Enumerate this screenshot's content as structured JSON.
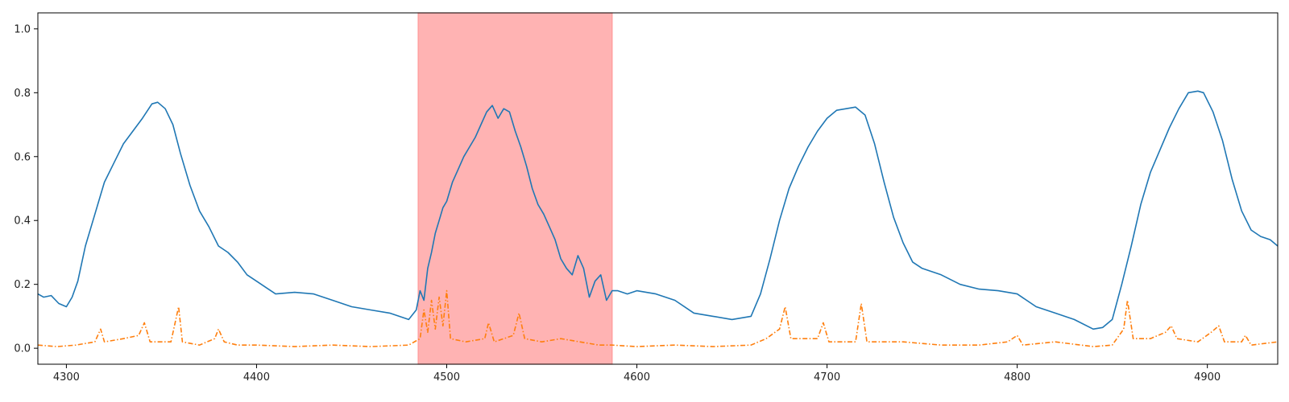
{
  "chart_data": {
    "type": "line",
    "title": "",
    "xlabel": "",
    "ylabel": "",
    "xlim": [
      4285,
      4937
    ],
    "ylim": [
      -0.05,
      1.05
    ],
    "xticks": [
      4300,
      4400,
      4500,
      4600,
      4700,
      4800,
      4900
    ],
    "yticks": [
      0.0,
      0.2,
      0.4,
      0.6,
      0.8,
      1.0
    ],
    "xtick_labels": [
      "4300",
      "4400",
      "4500",
      "4600",
      "4700",
      "4800",
      "4900"
    ],
    "ytick_labels": [
      "0.0",
      "0.2",
      "0.4",
      "0.6",
      "0.8",
      "1.0"
    ],
    "grid": false,
    "highlight_span": {
      "x_start": 4485,
      "x_end": 4587,
      "color": "#ff9999"
    },
    "series": [
      {
        "style": "solid",
        "color": "#1f77b4",
        "points": [
          [
            4285,
            0.17
          ],
          [
            4288,
            0.16
          ],
          [
            4292,
            0.165
          ],
          [
            4296,
            0.14
          ],
          [
            4300,
            0.13
          ],
          [
            4303,
            0.16
          ],
          [
            4306,
            0.21
          ],
          [
            4310,
            0.32
          ],
          [
            4315,
            0.42
          ],
          [
            4320,
            0.52
          ],
          [
            4325,
            0.58
          ],
          [
            4330,
            0.64
          ],
          [
            4335,
            0.68
          ],
          [
            4340,
            0.72
          ],
          [
            4345,
            0.765
          ],
          [
            4348,
            0.77
          ],
          [
            4352,
            0.75
          ],
          [
            4356,
            0.7
          ],
          [
            4360,
            0.61
          ],
          [
            4365,
            0.51
          ],
          [
            4370,
            0.43
          ],
          [
            4375,
            0.38
          ],
          [
            4380,
            0.32
          ],
          [
            4385,
            0.3
          ],
          [
            4390,
            0.27
          ],
          [
            4395,
            0.23
          ],
          [
            4400,
            0.21
          ],
          [
            4405,
            0.19
          ],
          [
            4410,
            0.17
          ],
          [
            4420,
            0.175
          ],
          [
            4430,
            0.17
          ],
          [
            4440,
            0.15
          ],
          [
            4450,
            0.13
          ],
          [
            4460,
            0.12
          ],
          [
            4470,
            0.11
          ],
          [
            4480,
            0.09
          ],
          [
            4484,
            0.12
          ],
          [
            4486,
            0.18
          ],
          [
            4488,
            0.15
          ],
          [
            4490,
            0.25
          ],
          [
            4492,
            0.3
          ],
          [
            4494,
            0.36
          ],
          [
            4496,
            0.4
          ],
          [
            4498,
            0.44
          ],
          [
            4500,
            0.46
          ],
          [
            4503,
            0.52
          ],
          [
            4506,
            0.56
          ],
          [
            4509,
            0.6
          ],
          [
            4512,
            0.63
          ],
          [
            4515,
            0.66
          ],
          [
            4518,
            0.7
          ],
          [
            4521,
            0.74
          ],
          [
            4524,
            0.76
          ],
          [
            4527,
            0.72
          ],
          [
            4530,
            0.75
          ],
          [
            4533,
            0.74
          ],
          [
            4536,
            0.68
          ],
          [
            4539,
            0.63
          ],
          [
            4542,
            0.57
          ],
          [
            4545,
            0.5
          ],
          [
            4548,
            0.45
          ],
          [
            4551,
            0.42
          ],
          [
            4554,
            0.38
          ],
          [
            4557,
            0.34
          ],
          [
            4560,
            0.28
          ],
          [
            4563,
            0.25
          ],
          [
            4566,
            0.23
          ],
          [
            4569,
            0.29
          ],
          [
            4572,
            0.25
          ],
          [
            4575,
            0.16
          ],
          [
            4578,
            0.21
          ],
          [
            4581,
            0.23
          ],
          [
            4584,
            0.15
          ],
          [
            4587,
            0.18
          ],
          [
            4590,
            0.18
          ],
          [
            4595,
            0.17
          ],
          [
            4600,
            0.18
          ],
          [
            4610,
            0.17
          ],
          [
            4620,
            0.15
          ],
          [
            4630,
            0.11
          ],
          [
            4640,
            0.1
          ],
          [
            4650,
            0.09
          ],
          [
            4660,
            0.1
          ],
          [
            4665,
            0.17
          ],
          [
            4670,
            0.28
          ],
          [
            4675,
            0.4
          ],
          [
            4680,
            0.5
          ],
          [
            4685,
            0.57
          ],
          [
            4690,
            0.63
          ],
          [
            4695,
            0.68
          ],
          [
            4700,
            0.72
          ],
          [
            4705,
            0.745
          ],
          [
            4710,
            0.75
          ],
          [
            4715,
            0.755
          ],
          [
            4720,
            0.73
          ],
          [
            4725,
            0.64
          ],
          [
            4730,
            0.52
          ],
          [
            4735,
            0.41
          ],
          [
            4740,
            0.33
          ],
          [
            4745,
            0.27
          ],
          [
            4750,
            0.25
          ],
          [
            4755,
            0.24
          ],
          [
            4760,
            0.23
          ],
          [
            4770,
            0.2
          ],
          [
            4780,
            0.185
          ],
          [
            4790,
            0.18
          ],
          [
            4800,
            0.17
          ],
          [
            4810,
            0.13
          ],
          [
            4820,
            0.11
          ],
          [
            4830,
            0.09
          ],
          [
            4840,
            0.06
          ],
          [
            4845,
            0.065
          ],
          [
            4850,
            0.09
          ],
          [
            4855,
            0.2
          ],
          [
            4860,
            0.32
          ],
          [
            4865,
            0.45
          ],
          [
            4870,
            0.55
          ],
          [
            4875,
            0.62
          ],
          [
            4880,
            0.69
          ],
          [
            4885,
            0.75
          ],
          [
            4890,
            0.8
          ],
          [
            4895,
            0.805
          ],
          [
            4898,
            0.8
          ],
          [
            4903,
            0.74
          ],
          [
            4908,
            0.65
          ],
          [
            4913,
            0.53
          ],
          [
            4918,
            0.43
          ],
          [
            4923,
            0.37
          ],
          [
            4928,
            0.35
          ],
          [
            4933,
            0.34
          ],
          [
            4937,
            0.32
          ]
        ]
      },
      {
        "style": "dashdot",
        "color": "#ff7f0e",
        "points": [
          [
            4285,
            0.01
          ],
          [
            4295,
            0.005
          ],
          [
            4305,
            0.01
          ],
          [
            4315,
            0.02
          ],
          [
            4318,
            0.06
          ],
          [
            4320,
            0.02
          ],
          [
            4330,
            0.03
          ],
          [
            4338,
            0.04
          ],
          [
            4341,
            0.08
          ],
          [
            4344,
            0.02
          ],
          [
            4355,
            0.02
          ],
          [
            4359,
            0.13
          ],
          [
            4361,
            0.02
          ],
          [
            4370,
            0.01
          ],
          [
            4378,
            0.03
          ],
          [
            4380,
            0.06
          ],
          [
            4383,
            0.02
          ],
          [
            4390,
            0.01
          ],
          [
            4400,
            0.01
          ],
          [
            4420,
            0.005
          ],
          [
            4440,
            0.01
          ],
          [
            4460,
            0.005
          ],
          [
            4480,
            0.01
          ],
          [
            4486,
            0.03
          ],
          [
            4488,
            0.12
          ],
          [
            4490,
            0.05
          ],
          [
            4492,
            0.15
          ],
          [
            4494,
            0.06
          ],
          [
            4496,
            0.16
          ],
          [
            4498,
            0.07
          ],
          [
            4500,
            0.18
          ],
          [
            4502,
            0.03
          ],
          [
            4510,
            0.02
          ],
          [
            4520,
            0.03
          ],
          [
            4522,
            0.08
          ],
          [
            4525,
            0.02
          ],
          [
            4535,
            0.04
          ],
          [
            4538,
            0.11
          ],
          [
            4541,
            0.03
          ],
          [
            4550,
            0.02
          ],
          [
            4560,
            0.03
          ],
          [
            4570,
            0.02
          ],
          [
            4580,
            0.01
          ],
          [
            4587,
            0.01
          ],
          [
            4600,
            0.005
          ],
          [
            4620,
            0.01
          ],
          [
            4640,
            0.005
          ],
          [
            4660,
            0.01
          ],
          [
            4668,
            0.03
          ],
          [
            4675,
            0.06
          ],
          [
            4678,
            0.13
          ],
          [
            4681,
            0.03
          ],
          [
            4695,
            0.03
          ],
          [
            4698,
            0.08
          ],
          [
            4701,
            0.02
          ],
          [
            4715,
            0.02
          ],
          [
            4718,
            0.14
          ],
          [
            4721,
            0.02
          ],
          [
            4740,
            0.02
          ],
          [
            4760,
            0.01
          ],
          [
            4780,
            0.01
          ],
          [
            4795,
            0.02
          ],
          [
            4800,
            0.04
          ],
          [
            4803,
            0.01
          ],
          [
            4820,
            0.02
          ],
          [
            4840,
            0.005
          ],
          [
            4850,
            0.01
          ],
          [
            4856,
            0.06
          ],
          [
            4858,
            0.15
          ],
          [
            4861,
            0.03
          ],
          [
            4870,
            0.03
          ],
          [
            4878,
            0.05
          ],
          [
            4881,
            0.07
          ],
          [
            4884,
            0.03
          ],
          [
            4895,
            0.02
          ],
          [
            4902,
            0.05
          ],
          [
            4906,
            0.07
          ],
          [
            4909,
            0.02
          ],
          [
            4918,
            0.02
          ],
          [
            4920,
            0.04
          ],
          [
            4923,
            0.01
          ],
          [
            4937,
            0.02
          ]
        ]
      }
    ]
  }
}
